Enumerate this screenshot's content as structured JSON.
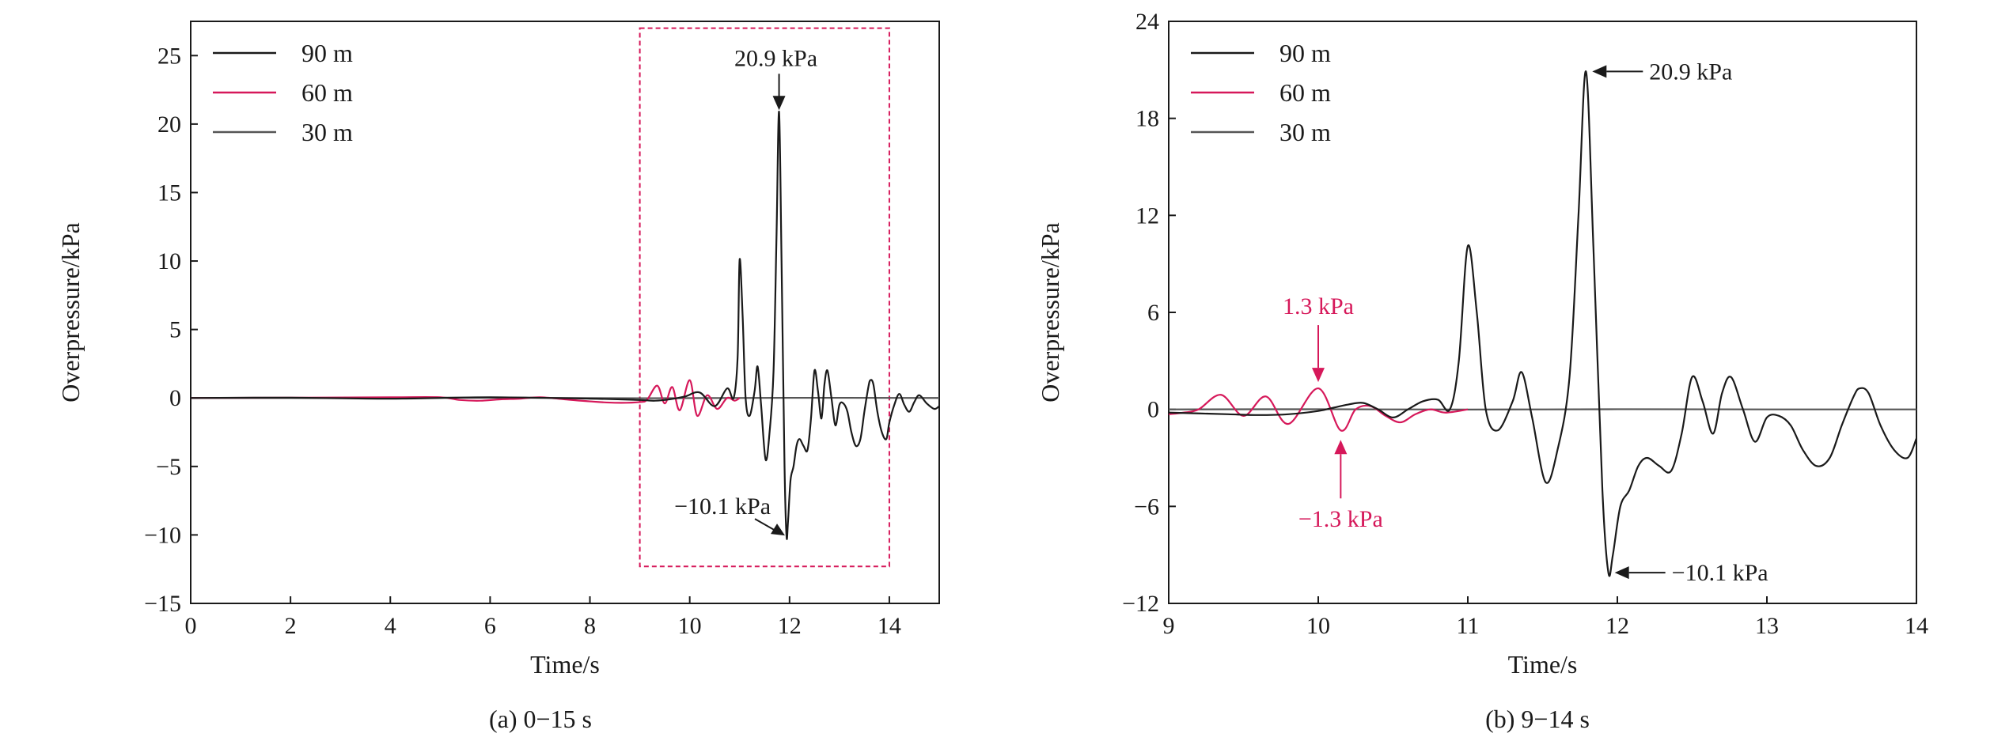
{
  "colors": {
    "series_90m": "#1a1a1a",
    "series_60m": "#d6185a",
    "series_30m": "#555555",
    "highlight_box": "#d6185a",
    "axis": "#1a1a1a",
    "annotation_red": "#d6185a"
  },
  "chart_data": [
    {
      "type": "line",
      "caption": "(a) 0−15 s",
      "xlabel": "Time/s",
      "ylabel": "Overpressure/kPa",
      "xlim": [
        0,
        15
      ],
      "ylim": [
        -15,
        27.5
      ],
      "xticks": [
        0,
        2,
        4,
        6,
        8,
        10,
        12,
        14
      ],
      "xtick_labels": [
        "0",
        "2",
        "4",
        "6",
        "8",
        "10",
        "12",
        "14"
      ],
      "yticks": [
        -15,
        -10,
        -5,
        0,
        5,
        10,
        15,
        20,
        25
      ],
      "ytick_labels": [
        "−15",
        "−10",
        "−5",
        "0",
        "5",
        "10",
        "15",
        "20",
        "25"
      ],
      "legend": [
        "90 m",
        "60 m",
        "30 m"
      ],
      "legend_position": "top-left",
      "highlight_box": {
        "x": [
          9,
          14
        ],
        "y": [
          -12.3,
          27
        ]
      },
      "series": [
        {
          "name": "90 m",
          "x": [
            0,
            2,
            4,
            6,
            8,
            9.0,
            9.3,
            9.6,
            9.9,
            10.2,
            10.5,
            10.75,
            10.88,
            10.96,
            11.0,
            11.06,
            11.12,
            11.2,
            11.3,
            11.36,
            11.43,
            11.52,
            11.6,
            11.68,
            11.74,
            11.79,
            11.84,
            11.9,
            11.94,
            11.97,
            12.02,
            12.08,
            12.14,
            12.2,
            12.28,
            12.36,
            12.43,
            12.5,
            12.57,
            12.64,
            12.7,
            12.76,
            12.84,
            12.92,
            13.0,
            13.08,
            13.16,
            13.24,
            13.33,
            13.42,
            13.5,
            13.58,
            13.62,
            13.68,
            13.76,
            13.85,
            13.94,
            14.0,
            14.1,
            14.2,
            14.3,
            14.4,
            14.5,
            14.6,
            14.75,
            14.9,
            15.0
          ],
          "y": [
            0,
            0.02,
            -0.05,
            0.05,
            -0.05,
            -0.15,
            -0.2,
            -0.1,
            0.1,
            0.4,
            -0.6,
            0.7,
            0.0,
            3.0,
            10.1,
            6.0,
            0.0,
            -1.3,
            0.5,
            2.3,
            -0.5,
            -4.5,
            -2.5,
            2.0,
            12.0,
            20.9,
            10.0,
            -5.0,
            -10.1,
            -9.0,
            -6.0,
            -5.0,
            -3.5,
            -3.0,
            -3.5,
            -3.8,
            -1.5,
            2.0,
            0.5,
            -1.5,
            1.0,
            2.0,
            0.0,
            -2.0,
            -0.5,
            -0.4,
            -1.0,
            -2.5,
            -3.5,
            -3.0,
            -1.0,
            0.8,
            1.3,
            1.0,
            -1.0,
            -2.5,
            -3.0,
            -1.8,
            -0.5,
            0.3,
            -0.5,
            -1.0,
            -0.3,
            0.2,
            -0.4,
            -0.8,
            -0.6
          ]
        },
        {
          "name": "60 m",
          "x": [
            0,
            2,
            4,
            5.0,
            5.4,
            5.8,
            6.2,
            6.6,
            7.0,
            7.5,
            8.0,
            8.5,
            9.0,
            9.15,
            9.35,
            9.5,
            9.65,
            9.8,
            10.0,
            10.15,
            10.35,
            10.55,
            10.75,
            10.9,
            11.0
          ],
          "y": [
            0,
            0.02,
            0.05,
            0.05,
            -0.15,
            -0.2,
            -0.1,
            -0.05,
            0.05,
            -0.1,
            -0.25,
            -0.35,
            -0.3,
            -0.1,
            0.9,
            -0.4,
            0.8,
            -0.9,
            1.3,
            -1.3,
            0.2,
            -0.8,
            0.0,
            -0.2,
            0.0
          ]
        },
        {
          "name": "30 m",
          "x": [
            0,
            3,
            6,
            9,
            12,
            15
          ],
          "y": [
            0,
            0,
            0.02,
            -0.02,
            0.01,
            0
          ]
        }
      ],
      "annotations": [
        {
          "text": "20.9 kPa",
          "x": 11.79,
          "y": 20.9,
          "color": "black"
        },
        {
          "text": "−10.1 kPa",
          "x": 11.94,
          "y": -10.1,
          "color": "black"
        }
      ]
    },
    {
      "type": "line",
      "caption": "(b) 9−14 s",
      "xlabel": "Time/s",
      "ylabel": "Overpressure/kPa",
      "xlim": [
        9,
        14
      ],
      "ylim": [
        -12,
        24
      ],
      "xticks": [
        9,
        10,
        11,
        12,
        13,
        14
      ],
      "xtick_labels": [
        "9",
        "10",
        "11",
        "12",
        "13",
        "14"
      ],
      "yticks": [
        -12,
        -6,
        0,
        6,
        12,
        18,
        24
      ],
      "ytick_labels": [
        "−12",
        "−6",
        "0",
        "6",
        "12",
        "18",
        "24"
      ],
      "legend": [
        "90 m",
        "60 m",
        "30 m"
      ],
      "legend_position": "top-left",
      "series": [
        {
          "name": "90 m",
          "x": [
            9.0,
            9.2,
            9.4,
            9.6,
            9.8,
            10.0,
            10.1,
            10.2,
            10.3,
            10.4,
            10.5,
            10.6,
            10.7,
            10.8,
            10.88,
            10.94,
            11.0,
            11.06,
            11.12,
            11.2,
            11.3,
            11.36,
            11.43,
            11.52,
            11.6,
            11.68,
            11.74,
            11.79,
            11.84,
            11.9,
            11.94,
            11.97,
            12.02,
            12.08,
            12.14,
            12.2,
            12.28,
            12.36,
            12.43,
            12.5,
            12.57,
            12.64,
            12.7,
            12.76,
            12.84,
            12.92,
            13.0,
            13.08,
            13.16,
            13.24,
            13.33,
            13.42,
            13.5,
            13.58,
            13.62,
            13.68,
            13.76,
            13.85,
            13.94,
            14.0
          ],
          "y": [
            -0.2,
            -0.25,
            -0.3,
            -0.35,
            -0.3,
            -0.1,
            0.1,
            0.3,
            0.4,
            0.0,
            -0.5,
            0.0,
            0.5,
            0.6,
            0.0,
            3.0,
            10.1,
            6.0,
            0.0,
            -1.3,
            0.5,
            2.3,
            -0.5,
            -4.5,
            -2.5,
            2.0,
            12.0,
            20.9,
            10.0,
            -5.0,
            -10.1,
            -9.0,
            -6.0,
            -5.0,
            -3.5,
            -3.0,
            -3.5,
            -3.8,
            -1.5,
            2.0,
            0.5,
            -1.5,
            1.0,
            2.0,
            0.0,
            -2.0,
            -0.5,
            -0.4,
            -1.0,
            -2.5,
            -3.5,
            -3.0,
            -1.0,
            0.8,
            1.3,
            1.0,
            -1.0,
            -2.5,
            -3.0,
            -1.8
          ]
        },
        {
          "name": "60 m",
          "x": [
            9.0,
            9.1,
            9.2,
            9.35,
            9.5,
            9.65,
            9.8,
            10.0,
            10.15,
            10.25,
            10.35,
            10.45,
            10.55,
            10.65,
            10.75,
            10.85,
            11.0
          ],
          "y": [
            -0.3,
            -0.2,
            0.0,
            0.9,
            -0.4,
            0.8,
            -0.9,
            1.3,
            -1.3,
            0.0,
            0.2,
            -0.4,
            -0.8,
            -0.3,
            0.0,
            -0.2,
            0.0
          ]
        },
        {
          "name": "30 m",
          "x": [
            9,
            10,
            11,
            12,
            13,
            14
          ],
          "y": [
            0,
            0.01,
            -0.01,
            0.01,
            0,
            0
          ]
        }
      ],
      "annotations": [
        {
          "text": "20.9 kPa",
          "x": 11.79,
          "y": 20.9,
          "color": "black"
        },
        {
          "text": "−10.1 kPa",
          "x": 11.94,
          "y": -10.1,
          "color": "black"
        },
        {
          "text": "1.3 kPa",
          "x": 10.0,
          "y": 1.3,
          "color": "red"
        },
        {
          "text": "−1.3 kPa",
          "x": 10.15,
          "y": -1.3,
          "color": "red"
        }
      ]
    }
  ]
}
